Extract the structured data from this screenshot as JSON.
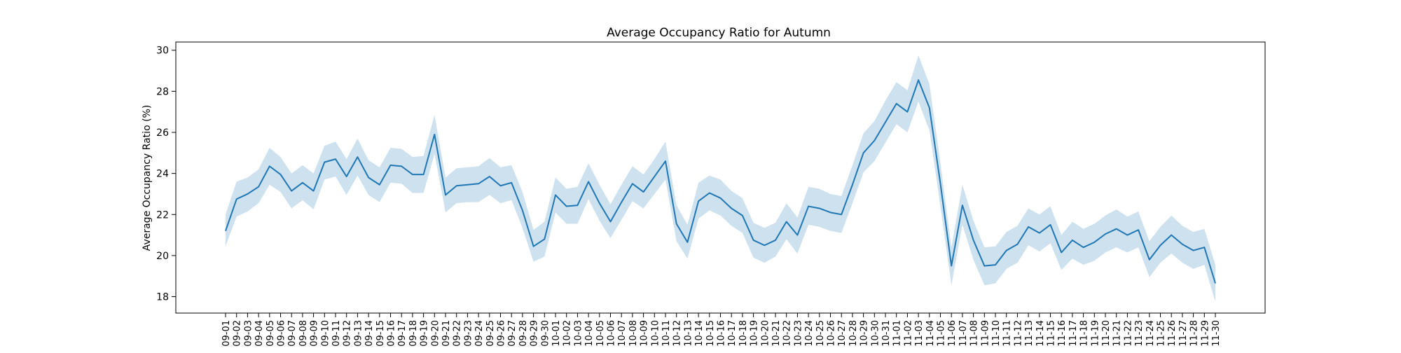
{
  "chart_data": {
    "type": "line",
    "title": "Average Occupancy Ratio for Autumn",
    "xlabel": "",
    "ylabel": "Average Occupancy Ratio (%)",
    "ylim": [
      17.2,
      30.4
    ],
    "yticks": [
      18,
      20,
      22,
      24,
      26,
      28,
      30
    ],
    "grid": false,
    "legend": "none",
    "colors": {
      "line": "#1f77b4",
      "band": "#1f77b4"
    },
    "x": [
      "09-01",
      "09-02",
      "09-03",
      "09-04",
      "09-05",
      "09-06",
      "09-07",
      "09-08",
      "09-09",
      "09-10",
      "09-11",
      "09-12",
      "09-13",
      "09-14",
      "09-15",
      "09-16",
      "09-17",
      "09-18",
      "09-19",
      "09-20",
      "09-21",
      "09-22",
      "09-23",
      "09-24",
      "09-25",
      "09-26",
      "09-27",
      "09-28",
      "09-29",
      "09-30",
      "10-01",
      "10-02",
      "10-03",
      "10-04",
      "10-05",
      "10-06",
      "10-07",
      "10-08",
      "10-09",
      "10-10",
      "10-11",
      "10-12",
      "10-13",
      "10-14",
      "10-15",
      "10-16",
      "10-17",
      "10-18",
      "10-19",
      "10-20",
      "10-21",
      "10-22",
      "10-23",
      "10-24",
      "10-25",
      "10-26",
      "10-27",
      "10-28",
      "10-29",
      "10-30",
      "10-31",
      "11-01",
      "11-02",
      "11-03",
      "11-04",
      "11-05",
      "11-06",
      "11-07",
      "11-08",
      "11-09",
      "11-10",
      "11-11",
      "11-12",
      "11-13",
      "11-14",
      "11-15",
      "11-16",
      "11-17",
      "11-18",
      "11-19",
      "11-20",
      "11-21",
      "11-22",
      "11-23",
      "11-24",
      "11-25",
      "11-26",
      "11-27",
      "11-28",
      "11-29",
      "11-30"
    ],
    "series": [
      {
        "values": [
          21.2,
          22.75,
          23.0,
          23.35,
          24.35,
          23.95,
          23.15,
          23.55,
          23.15,
          24.55,
          24.7,
          23.85,
          24.8,
          23.8,
          23.45,
          24.4,
          24.35,
          23.95,
          23.95,
          25.9,
          22.95,
          23.4,
          23.45,
          23.5,
          23.85,
          23.4,
          23.55,
          22.2,
          20.45,
          20.8,
          22.95,
          22.4,
          22.45,
          23.6,
          22.55,
          21.65,
          22.6,
          23.5,
          23.1,
          23.85,
          24.6,
          21.55,
          20.65,
          22.65,
          23.05,
          22.8,
          22.3,
          21.95,
          20.75,
          20.5,
          20.75,
          21.65,
          21.0,
          22.4,
          22.3,
          22.1,
          22.0,
          23.45,
          25.0,
          25.6,
          26.5,
          27.4,
          27.0,
          28.55,
          27.2,
          23.5,
          19.5,
          22.45,
          20.75,
          19.5,
          19.55,
          20.25,
          20.55,
          21.4,
          21.1,
          21.5,
          20.15,
          20.75,
          20.4,
          20.65,
          21.05,
          21.3,
          21.0,
          21.25,
          19.8,
          20.5,
          21.0,
          20.55,
          20.25,
          20.4,
          18.65
        ],
        "lower": [
          20.45,
          21.9,
          22.15,
          22.55,
          23.45,
          23.1,
          22.3,
          22.7,
          22.25,
          23.7,
          23.85,
          22.95,
          23.9,
          22.95,
          22.6,
          23.55,
          23.5,
          23.05,
          23.05,
          24.95,
          22.1,
          22.55,
          22.6,
          22.6,
          22.95,
          22.55,
          22.7,
          21.35,
          19.7,
          19.95,
          22.1,
          21.55,
          21.55,
          22.75,
          21.7,
          20.85,
          21.75,
          22.65,
          22.3,
          23.0,
          23.7,
          20.7,
          19.85,
          21.8,
          22.2,
          21.95,
          21.45,
          21.1,
          19.9,
          19.65,
          19.95,
          20.8,
          20.1,
          21.5,
          21.4,
          21.2,
          21.1,
          22.55,
          24.05,
          24.6,
          25.5,
          26.4,
          26.0,
          27.5,
          26.1,
          22.4,
          18.55,
          21.5,
          19.8,
          18.55,
          18.65,
          19.35,
          19.65,
          20.5,
          20.2,
          20.6,
          19.3,
          19.85,
          19.55,
          19.75,
          20.15,
          20.4,
          20.15,
          20.4,
          18.95,
          19.65,
          20.1,
          19.65,
          19.35,
          19.55,
          17.75
        ],
        "upper": [
          22.0,
          23.6,
          23.8,
          24.2,
          25.25,
          24.8,
          24.0,
          24.4,
          24.0,
          25.35,
          25.55,
          24.7,
          25.7,
          24.65,
          24.3,
          25.25,
          25.2,
          24.8,
          24.85,
          26.85,
          23.8,
          24.25,
          24.3,
          24.35,
          24.75,
          24.3,
          24.4,
          23.1,
          21.25,
          21.65,
          23.8,
          23.25,
          23.35,
          24.5,
          23.45,
          22.5,
          23.45,
          24.35,
          23.95,
          24.7,
          25.55,
          22.45,
          21.5,
          23.55,
          23.9,
          23.7,
          23.15,
          22.8,
          21.6,
          21.35,
          21.6,
          22.55,
          21.85,
          23.35,
          23.25,
          23.0,
          22.9,
          24.4,
          25.95,
          26.55,
          27.55,
          28.45,
          28.05,
          29.75,
          28.35,
          24.5,
          20.4,
          23.45,
          21.7,
          20.4,
          20.45,
          21.15,
          21.45,
          22.3,
          22.0,
          22.4,
          21.0,
          21.65,
          21.3,
          21.55,
          21.95,
          22.25,
          21.9,
          22.15,
          20.7,
          21.4,
          21.95,
          21.45,
          21.15,
          21.3,
          19.55
        ]
      }
    ]
  }
}
